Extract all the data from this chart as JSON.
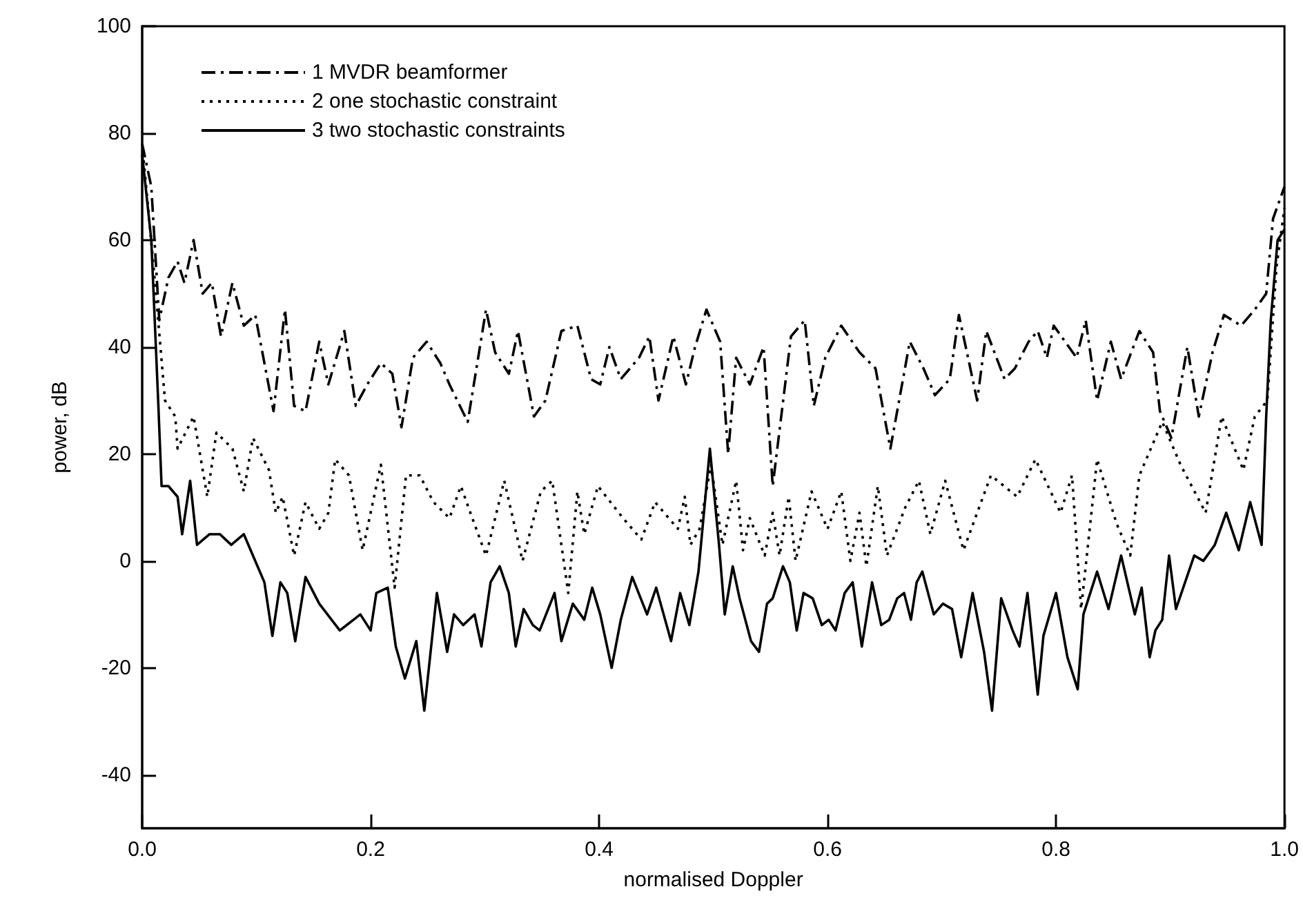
{
  "chart_data": {
    "type": "line",
    "xlabel": "normalised Doppler",
    "ylabel": "power, dB",
    "xlim": [
      0,
      1
    ],
    "ylim": [
      -50,
      100
    ],
    "xticks": [
      {
        "value": 0,
        "label": "0.0"
      },
      {
        "value": 0.2,
        "label": "0.2"
      },
      {
        "value": 0.4,
        "label": "0.4"
      },
      {
        "value": 0.6,
        "label": "0.6"
      },
      {
        "value": 0.8,
        "label": "0.8"
      },
      {
        "value": 1,
        "label": "1.0"
      }
    ],
    "yticks": [
      -40,
      -20,
      0,
      20,
      40,
      60,
      80,
      100
    ],
    "grid": false,
    "legend": "top left",
    "marker": "none",
    "series": [
      {
        "name": "1 MVDR beamformer",
        "color": "#000000",
        "line_style": "dashdot",
        "x": [
          0,
          0.008,
          0.015,
          0.023,
          0.031,
          0.037,
          0.045,
          0.053,
          0.061,
          0.069,
          0.079,
          0.089,
          0.099,
          0.115,
          0.125,
          0.133,
          0.143,
          0.155,
          0.163,
          0.177,
          0.187,
          0.197,
          0.209,
          0.219,
          0.227,
          0.237,
          0.249,
          0.261,
          0.269,
          0.285,
          0.301,
          0.309,
          0.321,
          0.329,
          0.343,
          0.353,
          0.367,
          0.381,
          0.393,
          0.401,
          0.409,
          0.419,
          0.435,
          0.444,
          0.452,
          0.465,
          0.476,
          0.484,
          0.494,
          0.506,
          0.513,
          0.52,
          0.532,
          0.544,
          0.552,
          0.568,
          0.58,
          0.588,
          0.598,
          0.612,
          0.628,
          0.642,
          0.655,
          0.672,
          0.684,
          0.694,
          0.707,
          0.715,
          0.731,
          0.739,
          0.755,
          0.764,
          0.776,
          0.784,
          0.792,
          0.798,
          0.808,
          0.818,
          0.826,
          0.836,
          0.848,
          0.857,
          0.873,
          0.885,
          0.891,
          0.901,
          0.915,
          0.925,
          0.937,
          0.947,
          0.962,
          0.974,
          0.984,
          0.99,
          1
        ],
        "values": [
          78,
          70,
          45,
          53,
          56,
          52,
          60,
          50,
          52,
          42,
          52,
          44,
          46,
          28,
          47,
          29,
          28,
          41,
          33,
          43,
          29,
          33,
          37,
          35,
          25,
          38,
          41,
          37,
          33,
          26,
          47,
          39,
          35,
          43,
          27,
          30,
          43,
          44,
          34,
          33,
          40,
          34,
          38,
          42,
          30,
          42,
          33,
          40,
          47,
          41,
          20,
          38,
          33,
          40,
          14,
          42,
          45,
          29,
          38,
          44,
          39,
          36,
          21,
          41,
          36,
          31,
          34,
          46,
          30,
          43,
          34,
          36,
          41,
          43,
          38,
          44,
          41,
          38,
          45,
          30,
          41,
          34,
          43,
          39,
          28,
          23,
          40,
          27,
          39,
          46,
          44,
          47,
          50,
          64,
          70
        ]
      },
      {
        "name": "2 one stochastic constraint",
        "color": "#000000",
        "line_style": "dotted",
        "x": [
          0,
          0.01,
          0.02,
          0.029,
          0.031,
          0.045,
          0.057,
          0.065,
          0.079,
          0.089,
          0.097,
          0.111,
          0.117,
          0.123,
          0.133,
          0.143,
          0.155,
          0.163,
          0.169,
          0.181,
          0.193,
          0.209,
          0.221,
          0.231,
          0.243,
          0.255,
          0.269,
          0.279,
          0.289,
          0.301,
          0.317,
          0.333,
          0.349,
          0.359,
          0.373,
          0.381,
          0.387,
          0.399,
          0.421,
          0.437,
          0.449,
          0.469,
          0.475,
          0.48,
          0.488,
          0.498,
          0.508,
          0.52,
          0.526,
          0.532,
          0.545,
          0.552,
          0.558,
          0.566,
          0.572,
          0.586,
          0.6,
          0.612,
          0.62,
          0.628,
          0.634,
          0.644,
          0.652,
          0.668,
          0.68,
          0.69,
          0.703,
          0.719,
          0.743,
          0.766,
          0.782,
          0.804,
          0.814,
          0.822,
          0.836,
          0.853,
          0.865,
          0.873,
          0.893,
          0.909,
          0.931,
          0.945,
          0.964,
          0.974,
          0.985,
          0.993,
          1
        ],
        "values": [
          78,
          55,
          30,
          27,
          21,
          27,
          12,
          24,
          21,
          13,
          23,
          17,
          9,
          12,
          1,
          11,
          6,
          9,
          19,
          16,
          2,
          18,
          -5,
          16,
          16,
          11,
          8,
          14,
          8,
          1,
          15,
          0,
          13,
          15,
          -6,
          13,
          5,
          14,
          8,
          4,
          11,
          6,
          12,
          3,
          6,
          18,
          3,
          15,
          2,
          8,
          1,
          9,
          1,
          12,
          0,
          13,
          6,
          13,
          0,
          9,
          -1,
          14,
          1,
          10,
          15,
          5,
          15,
          2,
          16,
          12,
          19,
          9,
          16,
          -9,
          19,
          7,
          1,
          16,
          26,
          18,
          9,
          27,
          17,
          27,
          30,
          55,
          66
        ]
      },
      {
        "name": "3 two stochastic constraints",
        "color": "#000000",
        "line_style": "solid",
        "x": [
          0,
          0.008,
          0.014,
          0.017,
          0.023,
          0.031,
          0.035,
          0.042,
          0.048,
          0.059,
          0.068,
          0.078,
          0.089,
          0.097,
          0.107,
          0.114,
          0.121,
          0.127,
          0.134,
          0.143,
          0.155,
          0.173,
          0.191,
          0.2,
          0.205,
          0.215,
          0.222,
          0.23,
          0.24,
          0.247,
          0.258,
          0.267,
          0.273,
          0.281,
          0.291,
          0.297,
          0.305,
          0.313,
          0.321,
          0.327,
          0.334,
          0.342,
          0.348,
          0.361,
          0.367,
          0.377,
          0.387,
          0.394,
          0.401,
          0.411,
          0.419,
          0.429,
          0.442,
          0.45,
          0.463,
          0.471,
          0.479,
          0.487,
          0.497,
          0.505,
          0.51,
          0.517,
          0.523,
          0.533,
          0.54,
          0.547,
          0.552,
          0.561,
          0.567,
          0.573,
          0.579,
          0.587,
          0.595,
          0.601,
          0.607,
          0.615,
          0.622,
          0.63,
          0.639,
          0.647,
          0.654,
          0.661,
          0.667,
          0.673,
          0.678,
          0.683,
          0.693,
          0.701,
          0.709,
          0.717,
          0.727,
          0.737,
          0.744,
          0.752,
          0.762,
          0.768,
          0.775,
          0.784,
          0.789,
          0.8,
          0.81,
          0.819,
          0.824,
          0.836,
          0.846,
          0.857,
          0.869,
          0.875,
          0.882,
          0.887,
          0.893,
          0.899,
          0.905,
          0.921,
          0.929,
          0.939,
          0.949,
          0.96,
          0.97,
          0.98,
          0.984,
          0.988,
          0.994,
          1
        ],
        "values": [
          76,
          60,
          30,
          14,
          14,
          12,
          5,
          15,
          3,
          5,
          5,
          3,
          5,
          1,
          -4,
          -14,
          -4,
          -6,
          -15,
          -3,
          -8,
          -13,
          -10,
          -13,
          -6,
          -5,
          -16,
          -22,
          -15,
          -28,
          -6,
          -17,
          -10,
          -12,
          -10,
          -16,
          -4,
          -1,
          -6,
          -16,
          -9,
          -12,
          -13,
          -6,
          -15,
          -8,
          -11,
          -5,
          -10,
          -20,
          -11,
          -3,
          -10,
          -5,
          -15,
          -6,
          -12,
          -2,
          21,
          3,
          -10,
          -1,
          -7,
          -15,
          -17,
          -8,
          -7,
          -1,
          -4,
          -13,
          -6,
          -7,
          -12,
          -11,
          -13,
          -6,
          -4,
          -16,
          -4,
          -12,
          -11,
          -7,
          -6,
          -11,
          -4,
          -2,
          -10,
          -8,
          -9,
          -18,
          -6,
          -17,
          -28,
          -7,
          -13,
          -16,
          -6,
          -25,
          -14,
          -6,
          -18,
          -24,
          -10,
          -2,
          -9,
          1,
          -10,
          -5,
          -18,
          -13,
          -11,
          1,
          -9,
          1,
          0,
          3,
          9,
          2,
          11,
          3,
          27,
          45,
          60,
          62
        ]
      }
    ]
  }
}
